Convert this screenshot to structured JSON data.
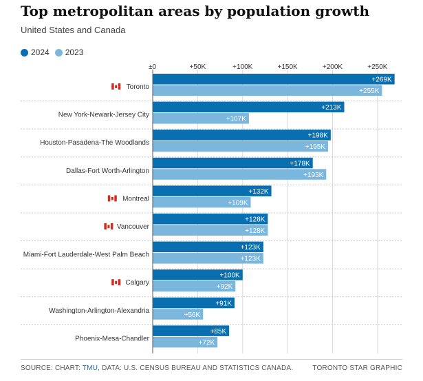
{
  "header": {
    "title": "Top metropolitan areas by population growth",
    "subtitle": "United States and Canada"
  },
  "legend": {
    "items": [
      {
        "label": "2024",
        "color": "#0a6fb0"
      },
      {
        "label": "2023",
        "color": "#7bb7dd"
      }
    ]
  },
  "chart_data": {
    "type": "bar",
    "orientation": "horizontal",
    "title": "Top metropolitan areas by population growth",
    "subtitle": "United States and Canada",
    "xlim": [
      0,
      270000
    ],
    "x_ticks": [
      {
        "value": 0,
        "label": "±0"
      },
      {
        "value": 50000,
        "label": "+50K"
      },
      {
        "value": 100000,
        "label": "+100K"
      },
      {
        "value": 150000,
        "label": "+150K"
      },
      {
        "value": 200000,
        "label": "+200K"
      },
      {
        "value": 250000,
        "label": "+250K"
      }
    ],
    "grid": true,
    "legend_position": "top-left",
    "categories": [
      {
        "name": "Toronto",
        "flag": "canada-flag-icon"
      },
      {
        "name": "New York-Newark-Jersey City",
        "flag": null
      },
      {
        "name": "Houston-Pasadena-The Woodlands",
        "flag": null
      },
      {
        "name": "Dallas-Fort Worth-Arlington",
        "flag": null
      },
      {
        "name": "Montreal",
        "flag": "canada-flag-icon"
      },
      {
        "name": "Vancouver",
        "flag": "canada-flag-icon"
      },
      {
        "name": "Miami-Fort Lauderdale-West Palm Beach",
        "flag": null
      },
      {
        "name": "Calgary",
        "flag": "canada-flag-icon"
      },
      {
        "name": "Washington-Arlington-Alexandria",
        "flag": null
      },
      {
        "name": "Phoenix-Mesa-Chandler",
        "flag": null
      }
    ],
    "series": [
      {
        "name": "2024",
        "color": "#0a6fb0",
        "values": [
          269000,
          213000,
          198000,
          178000,
          132000,
          128000,
          123000,
          100000,
          91000,
          85000
        ],
        "labels": [
          "+269K",
          "+213K",
          "+198K",
          "+178K",
          "+132K",
          "+128K",
          "+123K",
          "+100K",
          "+91K",
          "+85K"
        ]
      },
      {
        "name": "2023",
        "color": "#7bb7dd",
        "values": [
          255000,
          107000,
          195000,
          193000,
          109000,
          128000,
          123000,
          92000,
          56000,
          72000
        ],
        "labels": [
          "+255K",
          "+107K",
          "+195K",
          "+193K",
          "+109K",
          "+128K",
          "+123K",
          "+92K",
          "+56K",
          "+72K"
        ]
      }
    ]
  },
  "footer": {
    "source_prefix": "SOURCE: CHART: ",
    "source_link": "TMU",
    "source_suffix": ", DATA: U.S. CENSUS BUREAU AND STATISTICS CANADA.",
    "credit": "TORONTO STAR GRAPHIC"
  }
}
